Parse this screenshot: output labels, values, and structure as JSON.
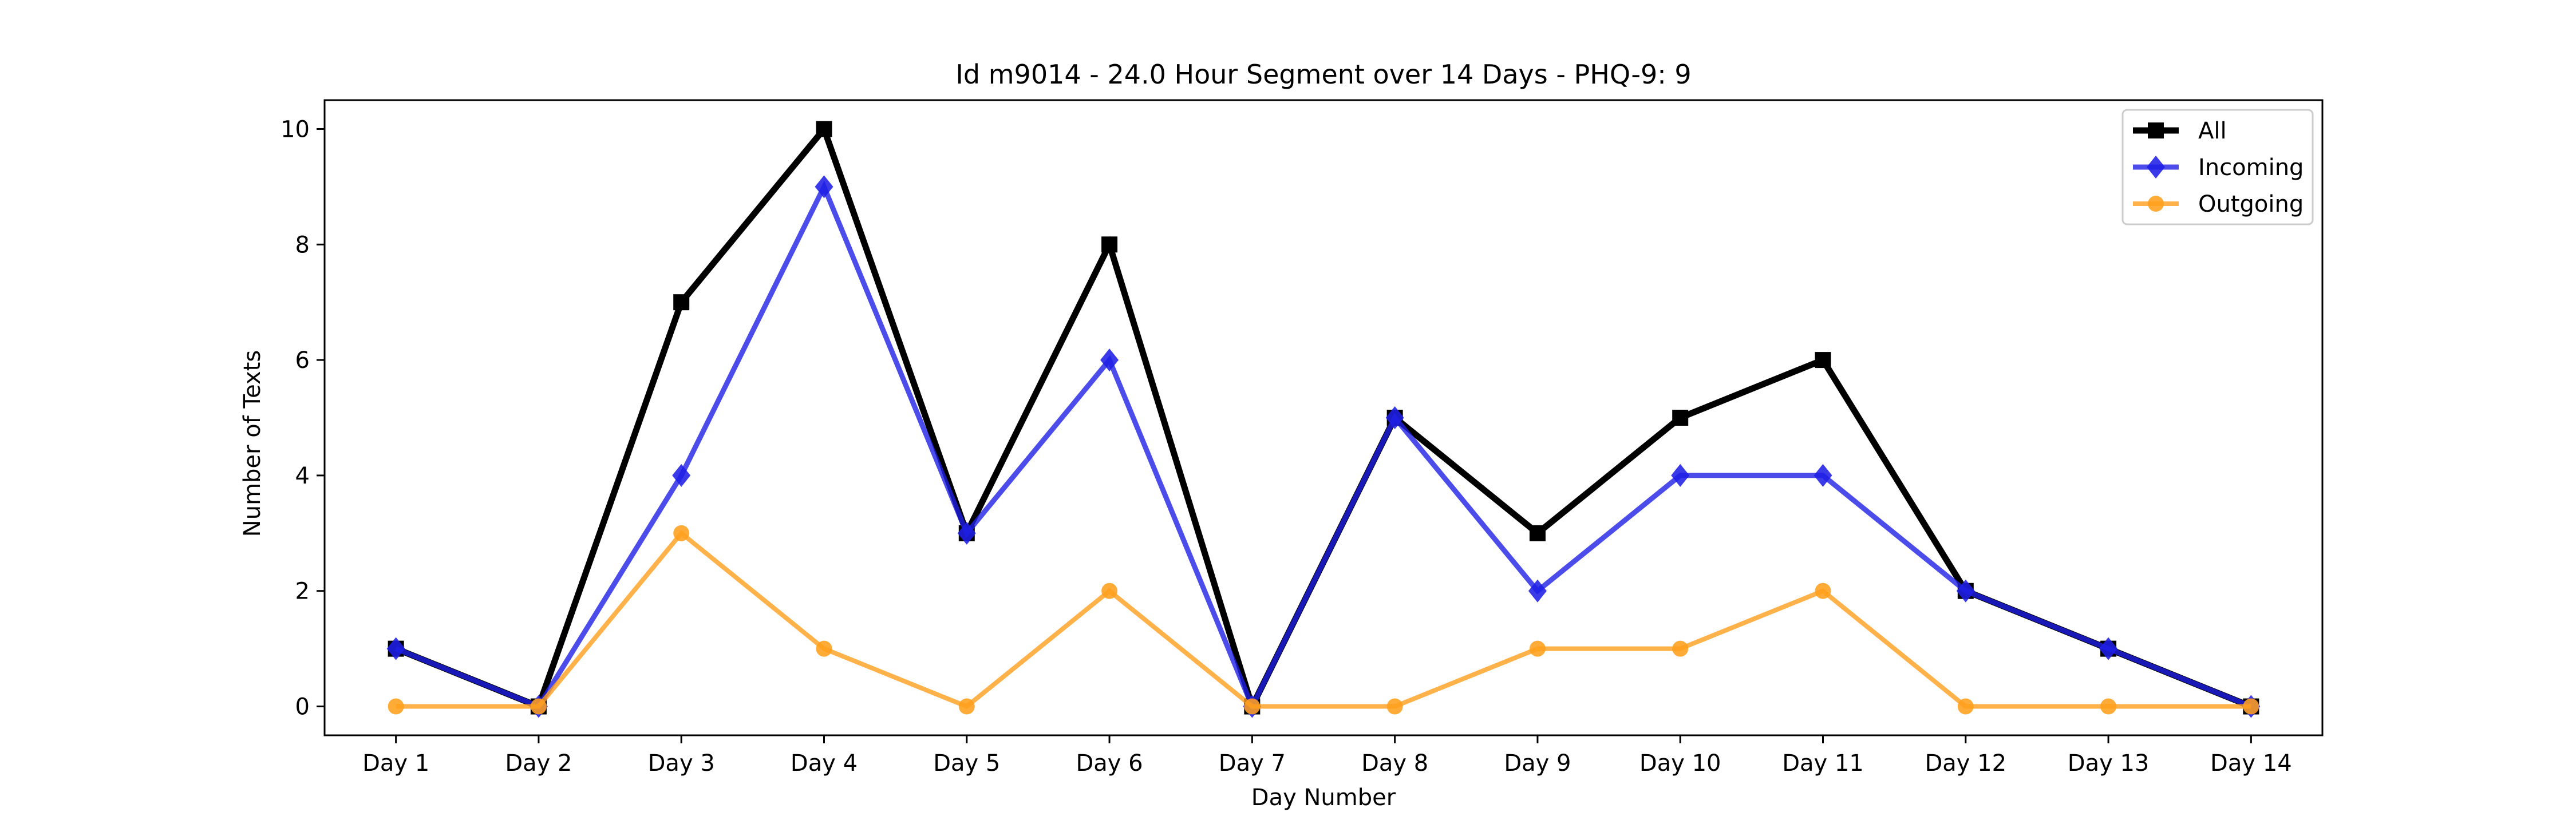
{
  "chart_data": {
    "type": "line",
    "title": "Id m9014 - 24.0 Hour Segment over 14 Days - PHQ-9: 9",
    "xlabel": "Day Number",
    "ylabel": "Number of Texts",
    "categories": [
      "Day 1",
      "Day 2",
      "Day 3",
      "Day 4",
      "Day 5",
      "Day 6",
      "Day 7",
      "Day 8",
      "Day 9",
      "Day 10",
      "Day 11",
      "Day 12",
      "Day 13",
      "Day 14"
    ],
    "ylim": [
      -0.5,
      10.5
    ],
    "yticks": [
      0,
      2,
      4,
      6,
      8,
      10
    ],
    "grid": false,
    "legend_position": "top-right",
    "series": [
      {
        "name": "All",
        "color": "#000000",
        "marker": "square",
        "values": [
          1,
          0,
          7,
          10,
          3,
          8,
          0,
          5,
          3,
          5,
          6,
          2,
          1,
          0
        ]
      },
      {
        "name": "Incoming",
        "color": "#1f1fe6",
        "marker": "diamond",
        "values": [
          1,
          0,
          4,
          9,
          3,
          6,
          0,
          5,
          2,
          4,
          4,
          2,
          1,
          0
        ]
      },
      {
        "name": "Outgoing",
        "color": "#ff9f1c",
        "marker": "circle",
        "values": [
          0,
          0,
          3,
          1,
          0,
          2,
          0,
          0,
          1,
          1,
          2,
          0,
          0,
          0
        ]
      }
    ]
  }
}
